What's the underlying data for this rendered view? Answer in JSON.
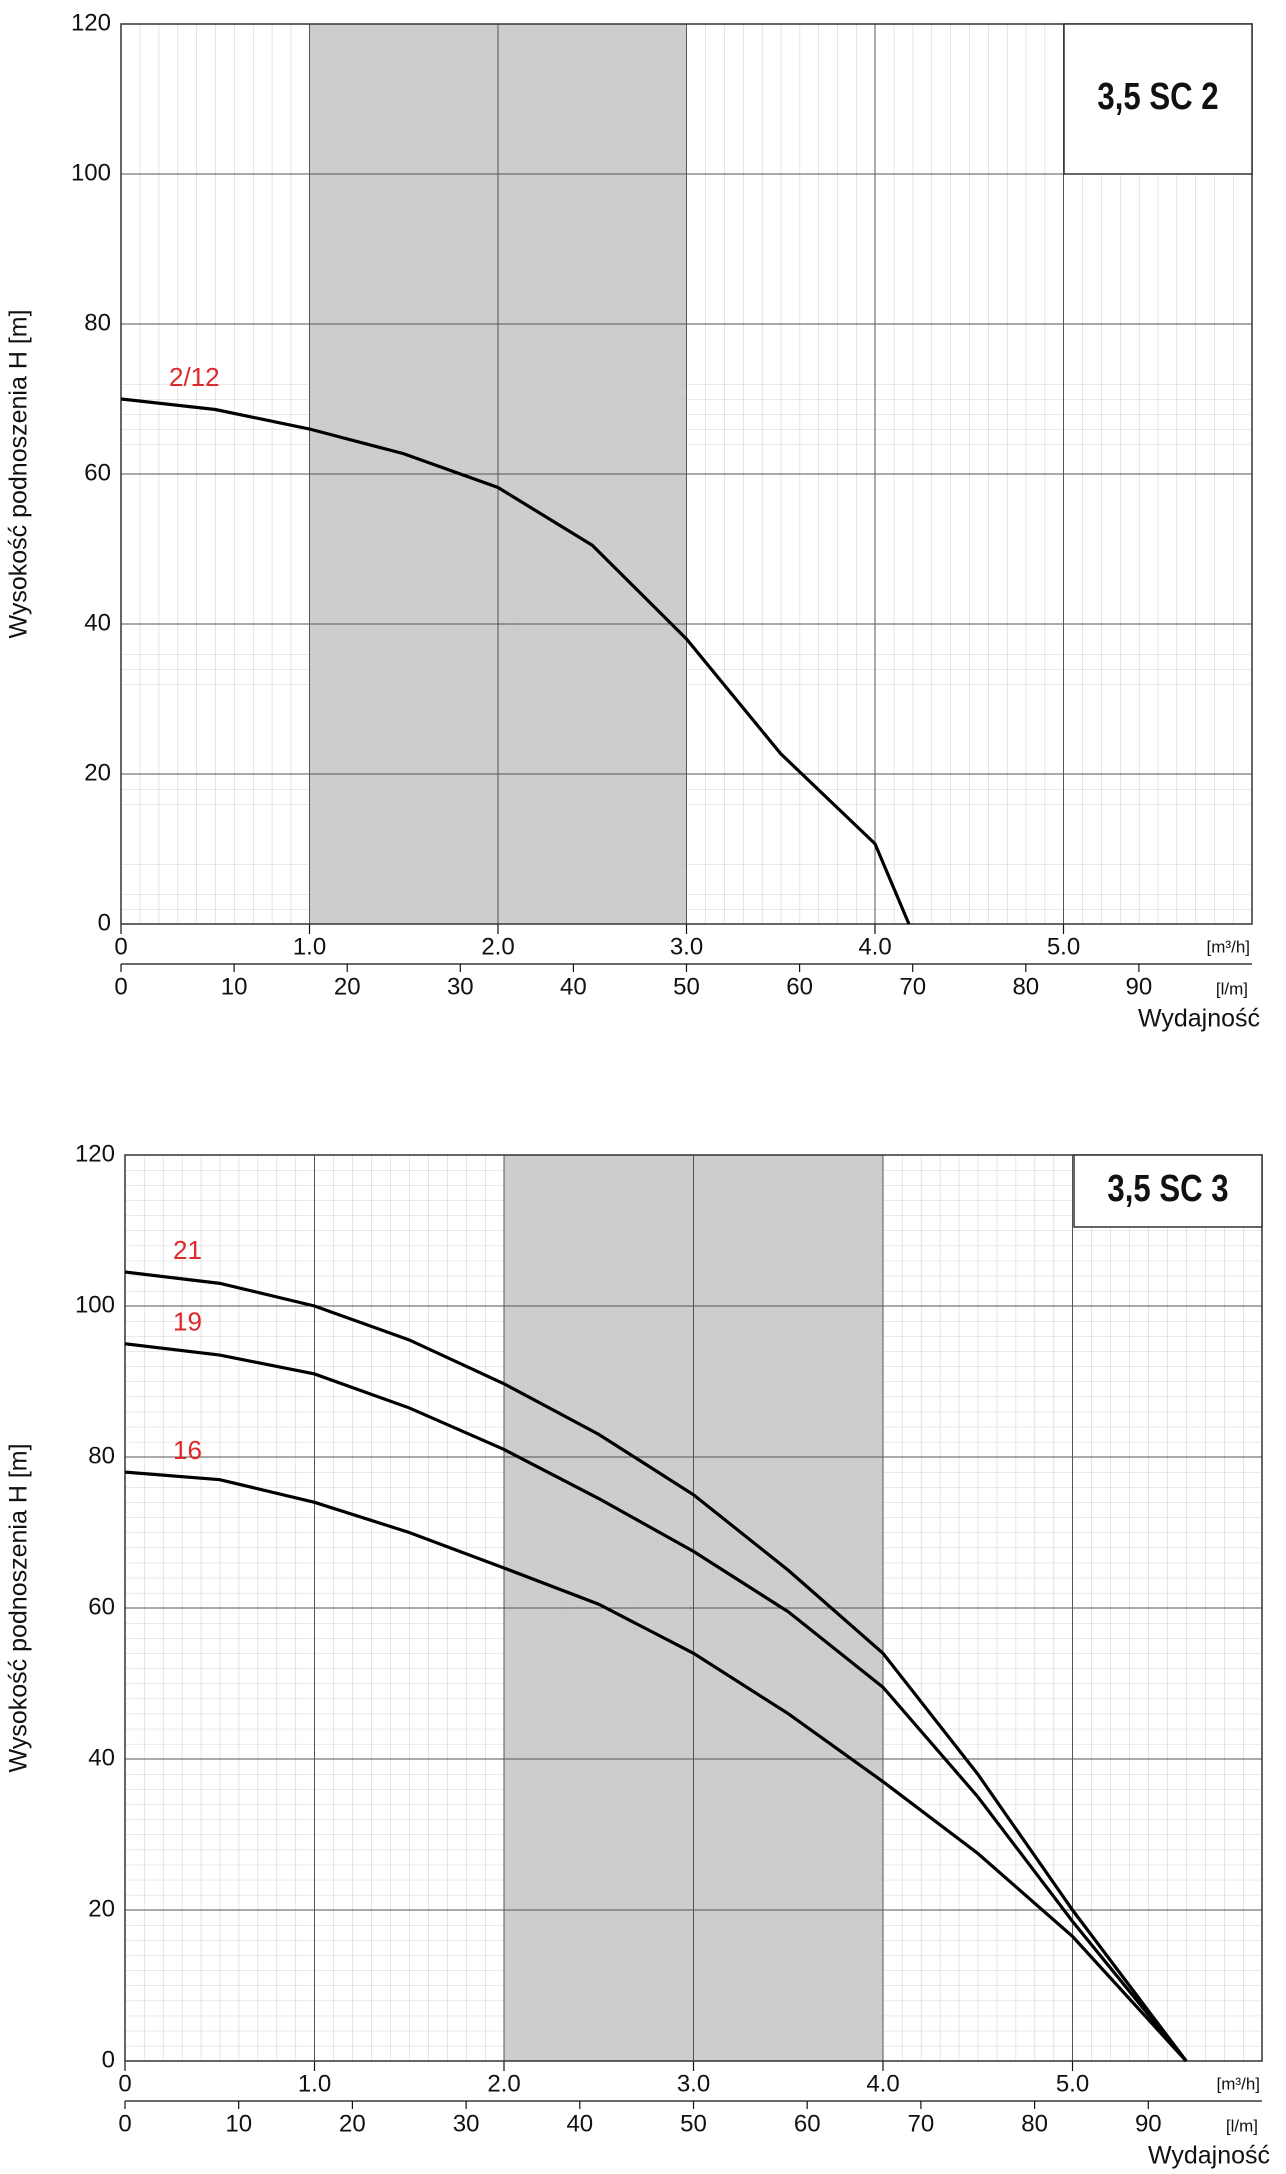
{
  "chart_data": [
    {
      "type": "line",
      "title": "3,5 SC 2",
      "y_label": "Wysokość podnoszenia H [m]",
      "x_label": "Wydajność",
      "x_unit": "[m³/h]",
      "x2_unit": "[l/m]",
      "xlim": [
        0,
        6
      ],
      "xticks": [
        0,
        {
          "value": 1,
          "label": "1.0"
        },
        {
          "value": 2,
          "label": "2.0"
        },
        {
          "value": 3,
          "label": "3.0"
        },
        {
          "value": 4,
          "label": "4.0"
        },
        {
          "value": 5,
          "label": "5.0"
        }
      ],
      "x2lim": [
        0,
        100
      ],
      "x2ticks": [
        0,
        10,
        20,
        30,
        40,
        50,
        60,
        70,
        80,
        90
      ],
      "ylim": [
        0,
        120
      ],
      "yticks": [
        0,
        20,
        40,
        60,
        80,
        100,
        120
      ],
      "grid": true,
      "shaded_range": [
        1,
        3
      ],
      "shade_color": "#c4c4c4",
      "x": [
        0,
        0.5,
        1,
        1.5,
        2,
        2.5,
        3,
        3.5,
        4,
        4.18
      ],
      "series": [
        {
          "name": "2/12",
          "color": "#000000",
          "label_color": "#e0282a",
          "values": [
            70,
            68.6,
            66,
            62.7,
            58.2,
            50.5,
            38,
            22.7,
            10.7,
            0
          ]
        }
      ]
    },
    {
      "type": "line",
      "title": "3,5 SC 3",
      "y_label": "Wysokość podnoszenia H [m]",
      "x_label": "Wydajność",
      "x_unit": "[m³/h]",
      "x2_unit": "[l/m]",
      "xlim": [
        0,
        6
      ],
      "xticks": [
        0,
        {
          "value": 1,
          "label": "1.0"
        },
        {
          "value": 2,
          "label": "2.0"
        },
        {
          "value": 3,
          "label": "3.0"
        },
        {
          "value": 4,
          "label": "4.0"
        },
        {
          "value": 5,
          "label": "5.0"
        }
      ],
      "x2lim": [
        0,
        100
      ],
      "x2ticks": [
        0,
        10,
        20,
        30,
        40,
        50,
        60,
        70,
        80,
        90
      ],
      "ylim": [
        0,
        120
      ],
      "yticks": [
        0,
        20,
        40,
        60,
        80,
        100,
        120
      ],
      "grid": true,
      "shaded_range": [
        2,
        4
      ],
      "shade_color": "#c4c4c4",
      "x": [
        0,
        0.5,
        1,
        1.5,
        2,
        2.5,
        3,
        3.5,
        4,
        4.5,
        5,
        5.6
      ],
      "series": [
        {
          "name": "21",
          "color": "#000000",
          "label_color": "#e0282a",
          "values": [
            104.5,
            103,
            100,
            95.5,
            89.7,
            83,
            75,
            65,
            54,
            38,
            20,
            0
          ]
        },
        {
          "name": "19",
          "color": "#000000",
          "label_color": "#e0282a",
          "values": [
            95,
            93.5,
            91,
            86.5,
            81,
            74.5,
            67.5,
            59.5,
            49.5,
            35,
            18.5,
            0
          ]
        },
        {
          "name": "16",
          "color": "#000000",
          "label_color": "#e0282a",
          "values": [
            78,
            77,
            74,
            70,
            65.3,
            60.5,
            54,
            46,
            37,
            27.5,
            16.5,
            0
          ]
        }
      ]
    }
  ]
}
